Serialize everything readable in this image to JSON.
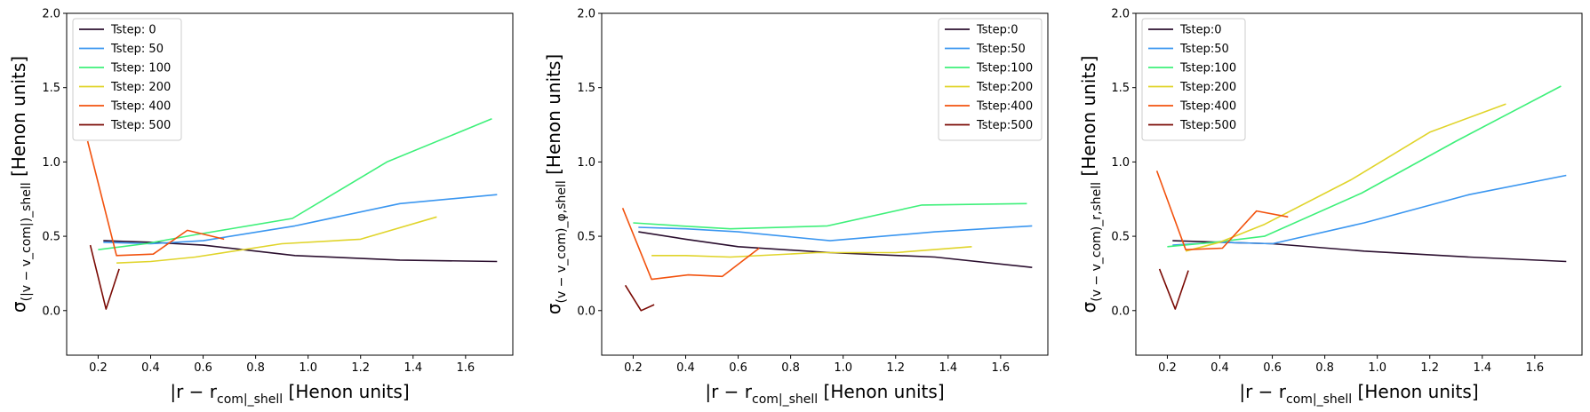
{
  "chart_data": [
    {
      "type": "line",
      "xlabel": "|r − r_com|_shell [Henon units]",
      "ylabel": "σ_(|v − v_com|)_shell [Henon units]",
      "xlim": [
        0.08,
        1.78
      ],
      "ylim": [
        -0.3,
        2.0
      ],
      "xticks": [
        "0.2",
        "0.4",
        "0.6",
        "0.8",
        "1.0",
        "1.2",
        "1.4",
        "1.6"
      ],
      "yticks": [
        "0.0",
        "0.5",
        "1.0",
        "1.5",
        "2.0"
      ],
      "legend": "upper-left",
      "grid": false,
      "series": [
        {
          "name": "Tstep: 0",
          "color": "#2b0f2f",
          "x": [
            0.22,
            0.4,
            0.6,
            0.95,
            1.35,
            1.72
          ],
          "y": [
            0.47,
            0.46,
            0.44,
            0.37,
            0.34,
            0.33
          ]
        },
        {
          "name": "Tstep: 50",
          "color": "#3a96f0",
          "x": [
            0.22,
            0.4,
            0.6,
            0.95,
            1.35,
            1.72
          ],
          "y": [
            0.46,
            0.45,
            0.47,
            0.57,
            0.72,
            0.78
          ]
        },
        {
          "name": "Tstep: 100",
          "color": "#3ef07a",
          "x": [
            0.2,
            0.38,
            0.57,
            0.94,
            1.3,
            1.7
          ],
          "y": [
            0.41,
            0.45,
            0.51,
            0.62,
            1.0,
            1.29
          ]
        },
        {
          "name": "Tstep: 200",
          "color": "#e0d42a",
          "x": [
            0.27,
            0.4,
            0.57,
            0.9,
            1.2,
            1.49
          ],
          "y": [
            0.32,
            0.33,
            0.36,
            0.45,
            0.48,
            0.63
          ]
        },
        {
          "name": "Tstep: 400",
          "color": "#f2520e",
          "x": [
            0.16,
            0.27,
            0.41,
            0.54,
            0.68
          ],
          "y": [
            1.14,
            0.37,
            0.38,
            0.54,
            0.48
          ]
        },
        {
          "name": "Tstep: 500",
          "color": "#7a0a04",
          "x": [
            0.17,
            0.23,
            0.28
          ],
          "y": [
            0.44,
            0.01,
            0.28
          ]
        }
      ]
    },
    {
      "type": "line",
      "xlabel": "|r − r_com|_shell [Henon units]",
      "ylabel": "σ_(v − v_com)_φ,shell [Henon units]",
      "xlim": [
        0.08,
        1.78
      ],
      "ylim": [
        -0.3,
        2.0
      ],
      "xticks": [
        "0.2",
        "0.4",
        "0.6",
        "0.8",
        "1.0",
        "1.2",
        "1.4",
        "1.6"
      ],
      "yticks": [
        "0.0",
        "0.5",
        "1.0",
        "1.5",
        "2.0"
      ],
      "legend": "upper-right",
      "grid": false,
      "series": [
        {
          "name": "Tstep:0",
          "color": "#2b0f2f",
          "x": [
            0.22,
            0.4,
            0.6,
            0.95,
            1.35,
            1.72
          ],
          "y": [
            0.53,
            0.48,
            0.43,
            0.39,
            0.36,
            0.29
          ]
        },
        {
          "name": "Tstep:50",
          "color": "#3a96f0",
          "x": [
            0.22,
            0.4,
            0.6,
            0.95,
            1.35,
            1.72
          ],
          "y": [
            0.56,
            0.55,
            0.53,
            0.47,
            0.53,
            0.57
          ]
        },
        {
          "name": "Tstep:100",
          "color": "#3ef07a",
          "x": [
            0.2,
            0.38,
            0.57,
            0.94,
            1.3,
            1.7
          ],
          "y": [
            0.59,
            0.57,
            0.55,
            0.57,
            0.71,
            0.72
          ]
        },
        {
          "name": "Tstep:200",
          "color": "#e0d42a",
          "x": [
            0.27,
            0.4,
            0.57,
            0.9,
            1.2,
            1.49
          ],
          "y": [
            0.37,
            0.37,
            0.36,
            0.39,
            0.39,
            0.43
          ]
        },
        {
          "name": "Tstep:400",
          "color": "#f2520e",
          "x": [
            0.16,
            0.27,
            0.41,
            0.54,
            0.68
          ],
          "y": [
            0.69,
            0.21,
            0.24,
            0.23,
            0.42
          ]
        },
        {
          "name": "Tstep:500",
          "color": "#7a0a04",
          "x": [
            0.17,
            0.23,
            0.28
          ],
          "y": [
            0.17,
            0.0,
            0.04
          ]
        }
      ]
    },
    {
      "type": "line",
      "xlabel": "|r − r_com|_shell [Henon units]",
      "ylabel": "σ_(v − v_com)_r,shell [Henon units]",
      "xlim": [
        0.08,
        1.78
      ],
      "ylim": [
        -0.3,
        2.0
      ],
      "xticks": [
        "0.2",
        "0.4",
        "0.6",
        "0.8",
        "1.0",
        "1.2",
        "1.4",
        "1.6"
      ],
      "yticks": [
        "0.0",
        "0.5",
        "1.0",
        "1.5",
        "2.0"
      ],
      "legend": "upper-left",
      "grid": false,
      "series": [
        {
          "name": "Tstep:0",
          "color": "#2b0f2f",
          "x": [
            0.22,
            0.4,
            0.6,
            0.95,
            1.35,
            1.72
          ],
          "y": [
            0.47,
            0.46,
            0.45,
            0.4,
            0.36,
            0.33
          ]
        },
        {
          "name": "Tstep:50",
          "color": "#3a96f0",
          "x": [
            0.22,
            0.4,
            0.6,
            0.95,
            1.35,
            1.72
          ],
          "y": [
            0.44,
            0.46,
            0.45,
            0.59,
            0.78,
            0.91
          ]
        },
        {
          "name": "Tstep:100",
          "color": "#3ef07a",
          "x": [
            0.2,
            0.38,
            0.57,
            0.94,
            1.3,
            1.7
          ],
          "y": [
            0.43,
            0.46,
            0.5,
            0.79,
            1.14,
            1.51
          ]
        },
        {
          "name": "Tstep:200",
          "color": "#e0d42a",
          "x": [
            0.27,
            0.4,
            0.57,
            0.9,
            1.2,
            1.49
          ],
          "y": [
            0.4,
            0.46,
            0.58,
            0.88,
            1.2,
            1.39
          ]
        },
        {
          "name": "Tstep:400",
          "color": "#f2520e",
          "x": [
            0.16,
            0.27,
            0.41,
            0.54,
            0.66
          ],
          "y": [
            0.94,
            0.41,
            0.42,
            0.67,
            0.63
          ]
        },
        {
          "name": "Tstep:500",
          "color": "#7a0a04",
          "x": [
            0.17,
            0.23,
            0.28
          ],
          "y": [
            0.28,
            0.01,
            0.27
          ]
        }
      ]
    }
  ]
}
